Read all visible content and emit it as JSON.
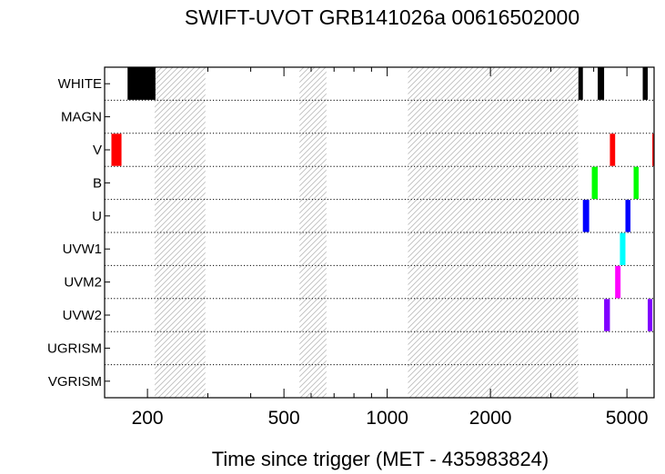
{
  "chart_data": {
    "type": "bar",
    "title": "SWIFT-UVOT GRB141026a 00616502000",
    "xlabel": "Time since trigger (MET - 435983824)",
    "ylabel": "",
    "xscale": "log",
    "xlim": [
      150,
      6000
    ],
    "xticks": [
      200,
      500,
      1000,
      2000,
      5000
    ],
    "xtick_labels": [
      "200",
      "500",
      "1000",
      "2000",
      "5000"
    ],
    "rows": [
      "WHITE",
      "MAGN",
      "V",
      "B",
      "U",
      "UVW1",
      "UVM2",
      "UVW2",
      "UGRISM",
      "VGRISM"
    ],
    "gaps": [
      [
        210,
        295
      ],
      [
        555,
        665
      ],
      [
        1150,
        3600
      ]
    ],
    "exposures": [
      {
        "filter": "WHITE",
        "start": 175,
        "end": 211,
        "color": "#000000"
      },
      {
        "filter": "WHITE",
        "start": 3610,
        "end": 3720,
        "color": "#000000"
      },
      {
        "filter": "WHITE",
        "start": 4110,
        "end": 4290,
        "color": "#000000"
      },
      {
        "filter": "WHITE",
        "start": 5560,
        "end": 5750,
        "color": "#000000"
      },
      {
        "filter": "V",
        "start": 157,
        "end": 168,
        "color": "#ff0000"
      },
      {
        "filter": "V",
        "start": 4460,
        "end": 4620,
        "color": "#ff0000"
      },
      {
        "filter": "V",
        "start": 5930,
        "end": 6000,
        "color": "#ff0000"
      },
      {
        "filter": "B",
        "start": 3950,
        "end": 4110,
        "color": "#00ff00"
      },
      {
        "filter": "B",
        "start": 5230,
        "end": 5410,
        "color": "#00ff00"
      },
      {
        "filter": "U",
        "start": 3720,
        "end": 3880,
        "color": "#0000ff"
      },
      {
        "filter": "U",
        "start": 4950,
        "end": 5120,
        "color": "#0000ff"
      },
      {
        "filter": "UVW1",
        "start": 4770,
        "end": 4950,
        "color": "#00ffff"
      },
      {
        "filter": "UVM2",
        "start": 4620,
        "end": 4790,
        "color": "#ff00ff"
      },
      {
        "filter": "UVW2",
        "start": 4290,
        "end": 4460,
        "color": "#8000ff"
      },
      {
        "filter": "UVW2",
        "start": 5750,
        "end": 5930,
        "color": "#8000ff"
      }
    ],
    "grid": true
  }
}
